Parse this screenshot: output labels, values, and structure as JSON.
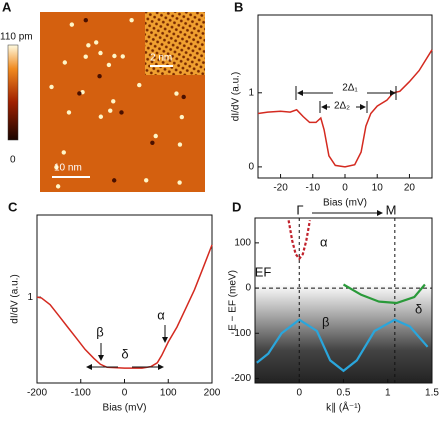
{
  "chart_data": [
    {
      "type": "image",
      "label": "A",
      "colorbar_labels": [
        "110 pm",
        "0"
      ],
      "scale_bars": [
        "10 nm",
        "2 nm"
      ]
    },
    {
      "type": "line",
      "label": "B",
      "xlabel": "Bias (mV)",
      "ylabel": "dI/dV (a.u.)",
      "xlim": [
        -27,
        27
      ],
      "ylim": [
        -0.15,
        2.05
      ],
      "xticks": [
        -20,
        -10,
        0,
        10,
        20
      ],
      "yticks": [
        0,
        1
      ],
      "annotations": [
        "2Δ₁",
        "2Δ₂"
      ],
      "series": [
        {
          "color": "#d42a20",
          "x": [
            -27,
            -24,
            -20,
            -17,
            -15,
            -13,
            -11,
            -9,
            -7.5,
            -6.5,
            -5,
            -3,
            0,
            3,
            5,
            6.5,
            8,
            10,
            13,
            15,
            17,
            20,
            23,
            27
          ],
          "values": [
            0.72,
            0.74,
            0.75,
            0.74,
            0.77,
            0.68,
            0.6,
            0.6,
            0.66,
            0.5,
            0.15,
            0.02,
            0,
            0.03,
            0.2,
            0.55,
            0.72,
            0.82,
            0.9,
            1.0,
            1.02,
            1.15,
            1.3,
            1.58
          ]
        }
      ]
    },
    {
      "type": "line",
      "label": "C",
      "xlabel": "Bias (mV)",
      "ylabel": "dI/dV (a.u.)",
      "xlim": [
        -200,
        200
      ],
      "ylim": [
        -0.15,
        2.1
      ],
      "xticks": [
        -200,
        -100,
        0,
        100,
        200
      ],
      "yticks": [
        1
      ],
      "annotations": [
        "β",
        "δ",
        "α"
      ],
      "series": [
        {
          "color": "#d42a20",
          "x": [
            -200,
            -190,
            -170,
            -150,
            -130,
            -110,
            -90,
            -70,
            -55,
            -40,
            0,
            40,
            60,
            75,
            85,
            100,
            120,
            140,
            160,
            180,
            200
          ],
          "values": [
            1.0,
            0.99,
            0.9,
            0.75,
            0.6,
            0.45,
            0.3,
            0.18,
            0.1,
            0.06,
            0.05,
            0.05,
            0.07,
            0.12,
            0.22,
            0.4,
            0.6,
            0.85,
            1.1,
            1.4,
            1.7
          ]
        }
      ]
    },
    {
      "type": "line",
      "label": "D",
      "xlabel": "k∥ (Å⁻¹)",
      "ylabel": "E − EF (meV)",
      "xlim": [
        -0.5,
        1.5
      ],
      "ylim": [
        -210,
        155
      ],
      "xticks": [
        0,
        0.5,
        1,
        1.5
      ],
      "yticks": [
        -200,
        -100,
        0,
        100
      ],
      "annotations": [
        "Γ",
        "M",
        "EF"
      ],
      "vlines": [
        0,
        1.08
      ],
      "hlines": [
        0
      ],
      "series": [
        {
          "name": "α",
          "color": "#c0202a",
          "dashed": true,
          "x": [
            -0.12,
            -0.08,
            -0.04,
            0,
            0.04,
            0.08,
            0.12
          ],
          "values": [
            150,
            105,
            75,
            65,
            75,
            105,
            150
          ]
        },
        {
          "name": "β",
          "color": "#2aa6dc",
          "x": [
            -0.48,
            -0.35,
            -0.2,
            0,
            0.2,
            0.35,
            0.5,
            0.65,
            0.85,
            1.08,
            1.25,
            1.45
          ],
          "values": [
            -165,
            -145,
            -100,
            -70,
            -95,
            -160,
            -183,
            -160,
            -95,
            -70,
            -85,
            -130
          ]
        },
        {
          "name": "δ",
          "color": "#2a9a3a",
          "x": [
            0.5,
            0.7,
            0.9,
            1.1,
            1.3,
            1.42
          ],
          "values": [
            8,
            -15,
            -30,
            -33,
            -20,
            8
          ]
        }
      ]
    }
  ]
}
